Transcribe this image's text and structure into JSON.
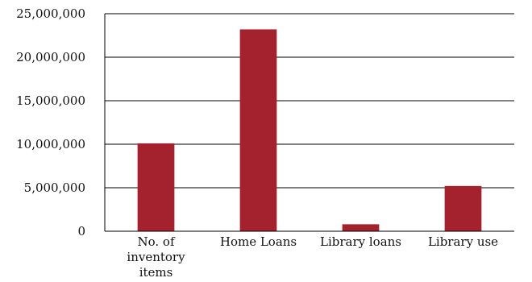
{
  "chart_data": {
    "type": "bar",
    "categories": [
      [
        "No. of",
        "inventory",
        "items"
      ],
      [
        "Home Loans"
      ],
      [
        "Library loans"
      ],
      [
        "Library use"
      ]
    ],
    "values": [
      10100000,
      23200000,
      800000,
      5200000
    ],
    "ylim": [
      0,
      25000000
    ],
    "yticks": [
      0,
      5000000,
      10000000,
      15000000,
      20000000,
      25000000
    ],
    "ytick_labels": [
      "0",
      "5,000,000",
      "10,000,000",
      "15,000,000",
      "20,000,000",
      "25,000,000"
    ],
    "grid": true,
    "legend": "none",
    "title": "",
    "xlabel": "",
    "ylabel": "",
    "colors": {
      "bar": "#a4222e",
      "axis": "#000000",
      "grid": "#000000"
    }
  }
}
